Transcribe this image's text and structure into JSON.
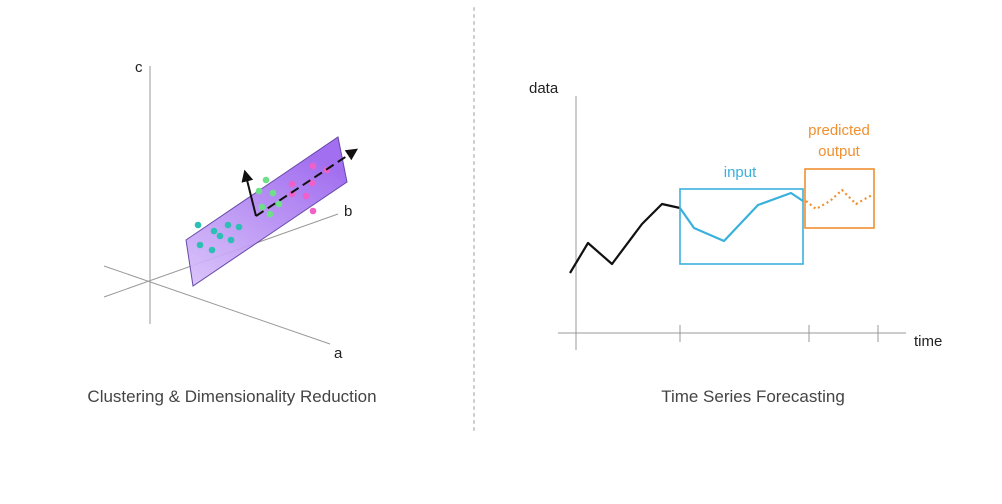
{
  "left_panel": {
    "caption": "Clustering & Dimensionality Reduction",
    "axis_a": "a",
    "axis_b": "b",
    "axis_c": "c",
    "plane_color": "#a070f0",
    "clusters": [
      {
        "color": "#2cc0b4",
        "count": 8
      },
      {
        "color": "#6ee08a",
        "count": 6
      },
      {
        "color": "#f060c8",
        "count": 7
      }
    ]
  },
  "right_panel": {
    "caption": "Time Series Forecasting",
    "y_label": "data",
    "x_label": "time",
    "input_label": "input",
    "output_label_line1": "predicted",
    "output_label_line2": "output",
    "input_color": "#3ab0dc",
    "output_color": "#f09030",
    "history_color": "#111111"
  },
  "divider": {
    "style": "dotted",
    "color": "#cccccc"
  }
}
